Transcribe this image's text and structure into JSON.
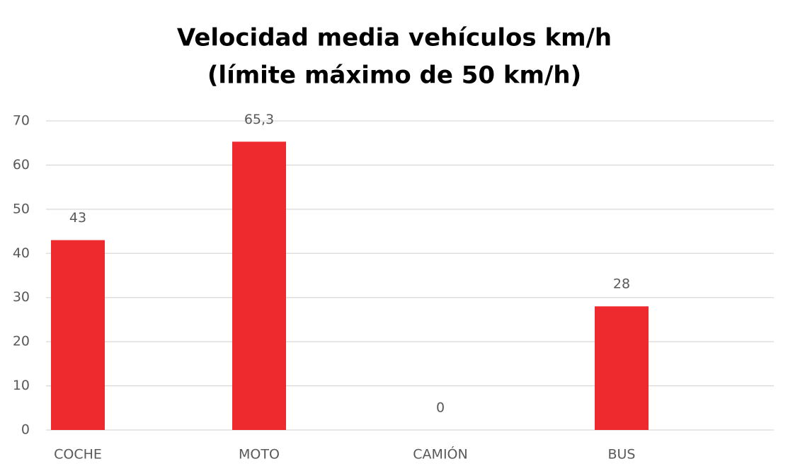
{
  "chart_data": {
    "type": "bar",
    "title": [
      "Velocidad media vehículos km/h",
      "(límite máximo de 50 km/h)"
    ],
    "categories": [
      "COCHE",
      "MOTO",
      "CAMIÓN",
      "BUS"
    ],
    "values": [
      43,
      65.3,
      0,
      28
    ],
    "value_labels": [
      "43",
      "65,3",
      "0",
      "28"
    ],
    "color": "#ee2a2e",
    "ylim": [
      0,
      70
    ],
    "yticks": [
      0,
      10,
      20,
      30,
      40,
      50,
      60,
      70
    ],
    "grid": true
  }
}
